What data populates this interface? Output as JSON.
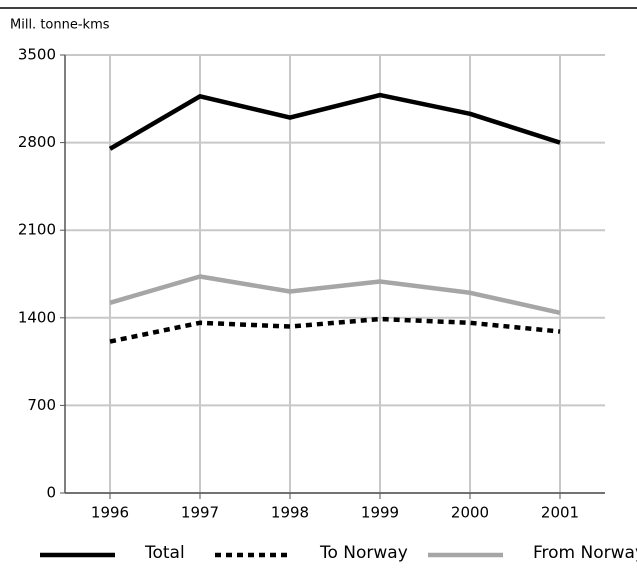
{
  "chart_data": {
    "type": "line",
    "y_label": "Mill. tonne-kms",
    "categories": [
      "1996",
      "1997",
      "1998",
      "1999",
      "2000",
      "2001"
    ],
    "series": [
      {
        "name": "Total",
        "color": "#000000",
        "style": "solid",
        "values": [
          2750,
          3170,
          3000,
          3180,
          3030,
          2800
        ]
      },
      {
        "name": "To Norway",
        "color": "#000000",
        "style": "dotted",
        "values": [
          1210,
          1360,
          1330,
          1390,
          1360,
          1290
        ]
      },
      {
        "name": "From Norway",
        "color": "#a6a6a6",
        "style": "solid",
        "values": [
          1520,
          1730,
          1610,
          1690,
          1600,
          1440
        ]
      }
    ],
    "ylim": [
      0,
      3500
    ],
    "yticks": [
      0,
      700,
      1400,
      2100,
      2800,
      3500
    ],
    "grid": true,
    "legend": "bottom"
  }
}
